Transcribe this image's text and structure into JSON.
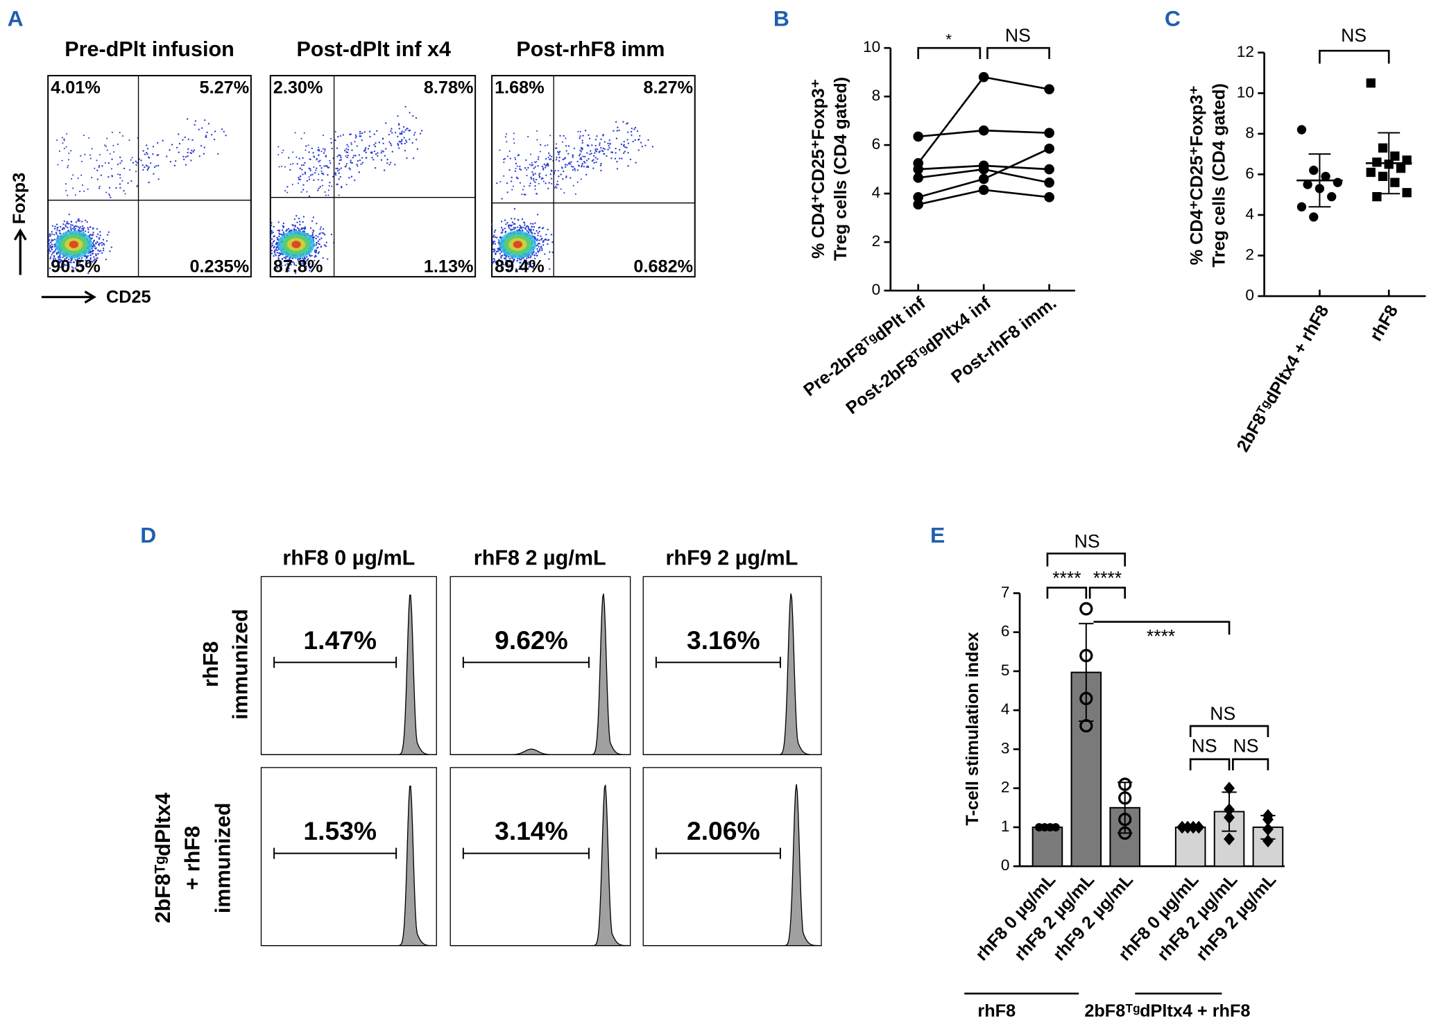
{
  "panel_labels": [
    "A",
    "B",
    "C",
    "D",
    "E"
  ],
  "panel_a": {
    "titles": [
      "Pre-dPlt infusion",
      "Post-dPlt inf x4",
      "Post-rhF8 imm"
    ],
    "quadrants": [
      [
        "4.01%",
        "5.27%",
        "90.5%",
        "0.235%"
      ],
      [
        "2.30%",
        "8.78%",
        "87.8%",
        "1.13%"
      ],
      [
        "1.68%",
        "8.27%",
        "89.4%",
        "0.682%"
      ]
    ],
    "y_label": "Foxp3",
    "x_label": "CD25"
  },
  "panel_d": {
    "columns": [
      "rhF8 0 µg/mL",
      "rhF8 2 µg/mL",
      "rhF9 2 µg/mL"
    ],
    "rows": [
      [
        "rhF8",
        "immunized"
      ],
      [
        "2bF8ᵀᵍdPltx4",
        "+ rhF8",
        "immunized"
      ]
    ],
    "percentages": [
      [
        "1.47%",
        "9.62%",
        "3.16%"
      ],
      [
        "1.53%",
        "3.14%",
        "2.06%"
      ]
    ]
  },
  "chart_data": [
    {
      "type": "line",
      "ylabel": [
        "% CD4⁺CD25⁺Foxp3⁺",
        "Treg cells (CD4 gated)"
      ],
      "categories": [
        "Pre-2bF8ᵀᵍdPlt inf",
        "Post-2bF8ᵀᵍdPltx4 inf",
        "Post-rhF8 imm."
      ],
      "series": [
        {
          "color": "#000000",
          "values": [
            5.25,
            8.8,
            8.3
          ]
        },
        {
          "color": "#000000",
          "values": [
            6.35,
            6.6,
            6.5
          ]
        },
        {
          "color": "#000000",
          "values": [
            5.0,
            5.15,
            5.0
          ]
        },
        {
          "color": "#000000",
          "values": [
            4.65,
            5.0,
            4.45
          ]
        },
        {
          "color": "#000000",
          "values": [
            3.85,
            4.6,
            5.85
          ]
        },
        {
          "color": "#000000",
          "values": [
            3.55,
            4.15,
            3.85
          ]
        }
      ],
      "ylim": [
        0,
        10
      ],
      "yticks": [
        0,
        2,
        4,
        6,
        8,
        10
      ],
      "annotations": [
        "*",
        "NS"
      ]
    },
    {
      "type": "scatter",
      "ylabel": [
        "% CD4⁺CD25⁺Foxp3⁺",
        "Treg cells (CD4 gated)"
      ],
      "categories": [
        "2bF8ᵀᵍdPltx4 + rhF8",
        "rhF8"
      ],
      "series": [
        {
          "marker": "circle",
          "color": "#000000",
          "values": [
            8.2,
            6.2,
            5.9,
            5.6,
            5.5,
            5.3,
            4.9,
            4.4,
            3.9
          ],
          "mean": 5.7,
          "sd": 1.3
        },
        {
          "marker": "square",
          "color": "#000000",
          "values": [
            10.5,
            7.3,
            6.9,
            6.7,
            6.6,
            6.5,
            6.3,
            6.1,
            5.9,
            5.6,
            5.1,
            4.9
          ],
          "mean": 6.55,
          "sd": 1.5
        }
      ],
      "ylim": [
        0,
        12
      ],
      "yticks": [
        0,
        2,
        4,
        6,
        8,
        10,
        12
      ],
      "annotations": [
        "NS"
      ]
    },
    {
      "type": "bar",
      "ylabel": "T-cell stimulation index",
      "categories": [
        "rhF8 0 µg/mL",
        "rhF8 2 µg/mL",
        "rhF9 2 µg/mL",
        "rhF8 0 µg/mL",
        "rhF8 2 µg/mL",
        "rhF9 2 µg/mL"
      ],
      "values": [
        1.0,
        4.97,
        1.5,
        1.0,
        1.4,
        1.0
      ],
      "errors": [
        0.05,
        1.25,
        0.65,
        0.02,
        0.5,
        0.3
      ],
      "colors": [
        "#7a7a7a",
        "#7a7a7a",
        "#7a7a7a",
        "#d4d4d4",
        "#d4d4d4",
        "#d4d4d4"
      ],
      "markers": [
        "circle",
        "circle-open",
        "circle-open",
        "diamond",
        "diamond",
        "diamond"
      ],
      "points": [
        [
          1,
          1,
          1,
          1
        ],
        [
          6.6,
          5.4,
          4.3,
          3.6
        ],
        [
          2.1,
          1.75,
          1.2,
          0.85
        ],
        [
          1,
          1,
          1,
          1
        ],
        [
          2.0,
          1.45,
          1.25,
          0.7
        ],
        [
          1.3,
          1.2,
          0.95,
          0.65
        ]
      ],
      "groups": [
        "rhF8",
        "2bF8ᵀᵍdPltx4 + rhF8"
      ],
      "ylim": [
        0,
        7
      ],
      "yticks": [
        0,
        1,
        2,
        3,
        4,
        5,
        6,
        7
      ],
      "annotations": [
        "NS",
        "****",
        "****",
        "****",
        "NS",
        "NS",
        "NS"
      ]
    }
  ]
}
